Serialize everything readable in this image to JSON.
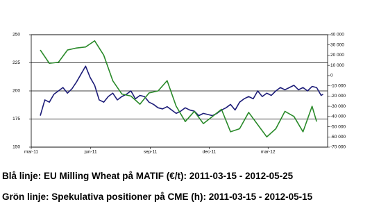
{
  "chart_data": {
    "type": "line",
    "ylim": [
      150,
      250
    ],
    "yticks": [
      150,
      175,
      200,
      225,
      250
    ],
    "y2lim": [
      -70000,
      40000
    ],
    "y2ticks": [
      {
        "value": -70000,
        "label": "-70 000"
      },
      {
        "value": -60000,
        "label": "-60 000"
      },
      {
        "value": -50000,
        "label": "-50 000"
      },
      {
        "value": -40000,
        "label": "-40 000"
      },
      {
        "value": -30000,
        "label": "-30 000"
      },
      {
        "value": -20000,
        "label": "-20 000"
      },
      {
        "value": -10000,
        "label": "-10 000"
      },
      0,
      {
        "value": 10000,
        "label": "10 000"
      },
      {
        "value": 20000,
        "label": "20 000"
      },
      {
        "value": 30000,
        "label": "30 000"
      },
      {
        "value": 40000,
        "label": "40 000"
      }
    ],
    "xlim": [
      "2011-03",
      "2012-06"
    ],
    "xticks": [
      {
        "value": "2011-03",
        "label": "mar-11"
      },
      {
        "value": "2011-06",
        "label": "jun-11"
      },
      {
        "value": "2011-09",
        "label": "sep-11"
      },
      {
        "value": "2011-12",
        "label": "dec-11"
      },
      {
        "value": "2012-03",
        "label": "mar-12"
      }
    ],
    "grid": true,
    "series": [
      {
        "color": "#1c1c78",
        "x": [
          "2011-03-15",
          "2011-03-22",
          "2011-03-29",
          "2011-04-05",
          "2011-04-12",
          "2011-04-19",
          "2011-04-26",
          "2011-05-03",
          "2011-05-10",
          "2011-05-17",
          "2011-05-24",
          "2011-05-31",
          "2011-06-07",
          "2011-06-14",
          "2011-06-21",
          "2011-06-28",
          "2011-07-05",
          "2011-07-12",
          "2011-07-19",
          "2011-07-26",
          "2011-08-02",
          "2011-08-09",
          "2011-08-16",
          "2011-08-23",
          "2011-08-30",
          "2011-09-06",
          "2011-09-13",
          "2011-09-20",
          "2011-09-27",
          "2011-10-04",
          "2011-10-11",
          "2011-10-18",
          "2011-10-25",
          "2011-11-01",
          "2011-11-08",
          "2011-11-15",
          "2011-11-22",
          "2011-11-29",
          "2011-12-06",
          "2011-12-13",
          "2011-12-20",
          "2011-12-27",
          "2012-01-03",
          "2012-01-10",
          "2012-01-17",
          "2012-01-24",
          "2012-01-31",
          "2012-02-07",
          "2012-02-14",
          "2012-02-21",
          "2012-02-28",
          "2012-03-06",
          "2012-03-13",
          "2012-03-20",
          "2012-03-27",
          "2012-04-03",
          "2012-04-10",
          "2012-04-17",
          "2012-04-24",
          "2012-05-01",
          "2012-05-08",
          "2012-05-15",
          "2012-05-22",
          "2012-05-25"
        ],
        "values": [
          178,
          192,
          190,
          197,
          200,
          203,
          198,
          202,
          208,
          215,
          222,
          212,
          205,
          192,
          190,
          195,
          198,
          192,
          195,
          197,
          200,
          193,
          196,
          195,
          190,
          188,
          185,
          184,
          186,
          183,
          180,
          182,
          185,
          183,
          182,
          178,
          180,
          179,
          178,
          180,
          183,
          185,
          188,
          183,
          190,
          193,
          195,
          193,
          200,
          195,
          198,
          196,
          200,
          203,
          201,
          203,
          205,
          201,
          203,
          200,
          204,
          203,
          196,
          197
        ]
      },
      {
        "color": "#2a8a2a",
        "axis": "y2",
        "x": [
          "2011-03-15",
          "2011-03-29",
          "2011-04-12",
          "2011-04-26",
          "2011-05-10",
          "2011-05-24",
          "2011-06-07",
          "2011-06-21",
          "2011-07-05",
          "2011-07-19",
          "2011-08-02",
          "2011-08-16",
          "2011-08-30",
          "2011-09-13",
          "2011-09-27",
          "2011-10-11",
          "2011-10-25",
          "2011-11-08",
          "2011-11-22",
          "2011-12-06",
          "2011-12-20",
          "2012-01-03",
          "2012-01-17",
          "2012-01-31",
          "2012-02-14",
          "2012-02-28",
          "2012-03-13",
          "2012-03-27",
          "2012-04-10",
          "2012-04-24",
          "2012-05-08",
          "2012-05-15"
        ],
        "values": [
          25000,
          12000,
          13000,
          25000,
          27000,
          28000,
          34000,
          20000,
          -5000,
          -18000,
          -20000,
          -28000,
          -17000,
          -15000,
          -5000,
          -30000,
          -45000,
          -35000,
          -47000,
          -40000,
          -33000,
          -55000,
          -52000,
          -36000,
          -48000,
          -60000,
          -52000,
          -35000,
          -40000,
          -55000,
          -30000,
          -45000
        ]
      }
    ],
    "annotations": [
      "Blå linje: EU Milling Wheat på MATIF (€/t): 2011-03-15 - 2012-05-25",
      "Grön linje: Spekulativa positioner på CME (h): 2011-03-15 - 2012-05-15"
    ]
  }
}
